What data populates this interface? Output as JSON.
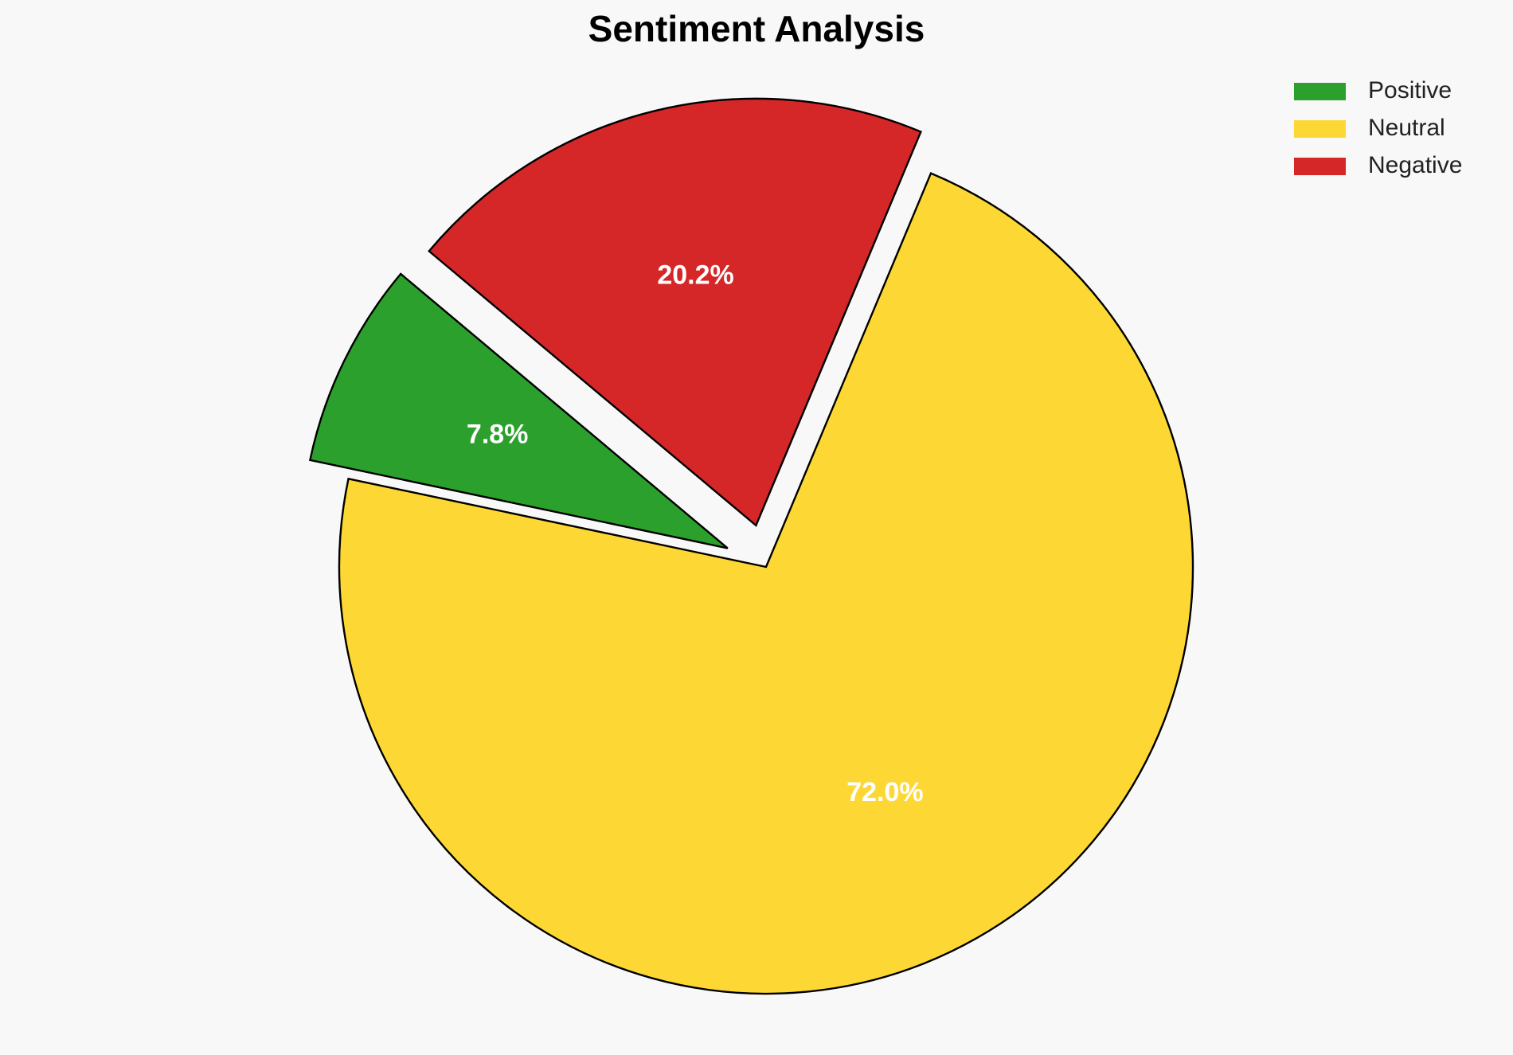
{
  "chart_data": {
    "type": "pie",
    "title": "Sentiment Analysis",
    "categories": [
      "Positive",
      "Neutral",
      "Negative"
    ],
    "values": [
      7.8,
      72.0,
      20.2
    ],
    "value_labels": [
      "7.8%",
      "72.0%",
      "20.2%"
    ],
    "colors": [
      "#2ca02c",
      "#fdd835",
      "#d62728"
    ],
    "legend": "upper right"
  }
}
